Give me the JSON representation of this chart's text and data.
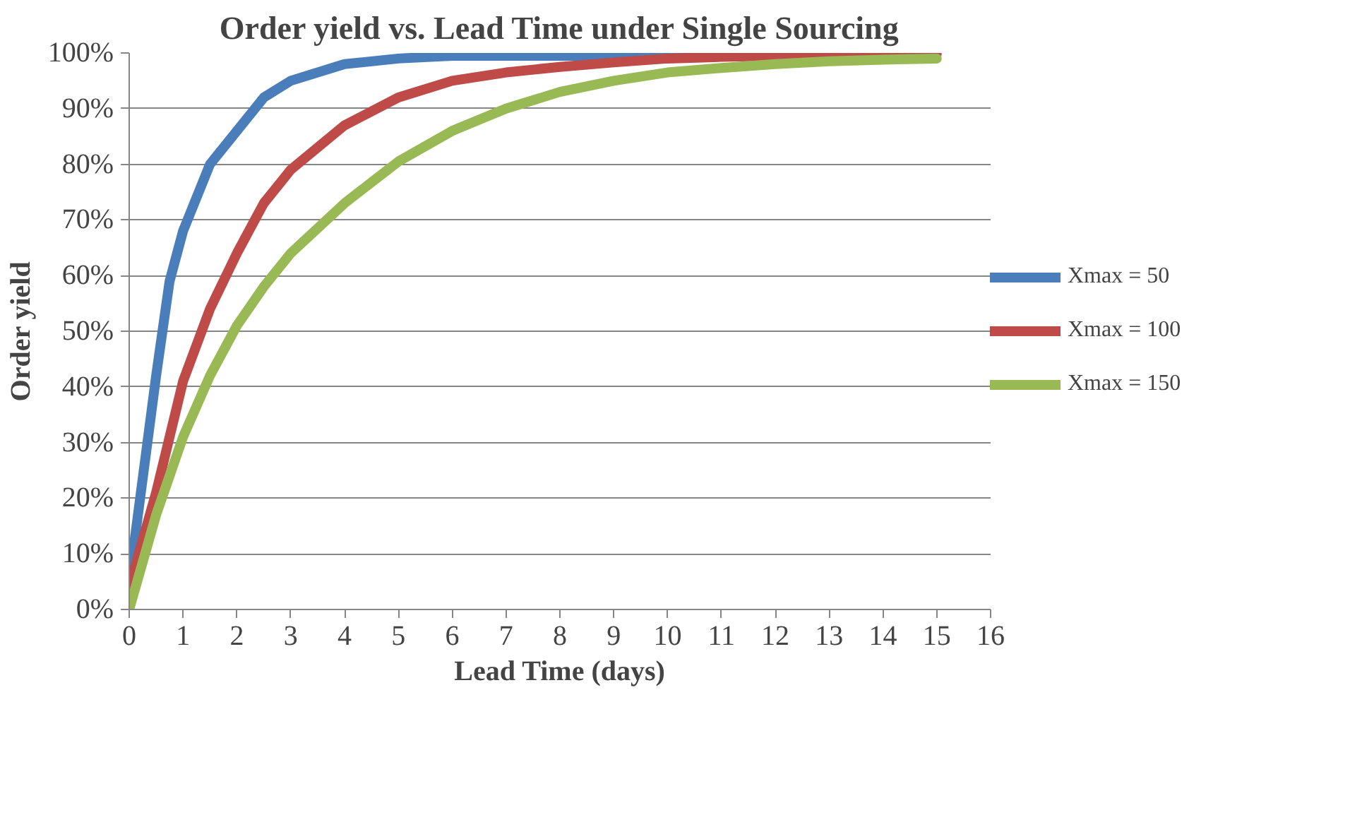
{
  "chart_data": {
    "type": "line",
    "title": "Order yield vs. Lead Time under Single Sourcing",
    "xlabel": "Lead Time (days)",
    "ylabel": "Order yield",
    "x": [
      0,
      0.5,
      0.75,
      1,
      1.5,
      2,
      2.5,
      3,
      4,
      5,
      6,
      7,
      8,
      9,
      10,
      11,
      12,
      13,
      14,
      15
    ],
    "series": [
      {
        "name": "Xmax = 50",
        "color": "#4a7ebb",
        "values": [
          5,
          42,
          59,
          68,
          80,
          86,
          92,
          95,
          98,
          99,
          99.5,
          99.5,
          99.5,
          99.5,
          99.5,
          99.5,
          null,
          null,
          null,
          null
        ]
      },
      {
        "name": "Xmax = 100",
        "color": "#be4b48",
        "values": [
          4,
          21,
          31,
          41,
          54,
          64,
          73,
          79,
          87,
          92,
          95,
          96.5,
          97.5,
          98.3,
          99,
          99.3,
          99.5,
          99.6,
          99.7,
          99.8
        ]
      },
      {
        "name": "Xmax = 150",
        "color": "#98b954",
        "values": [
          0,
          17,
          24,
          31,
          42,
          51,
          58,
          64,
          73,
          80.5,
          86,
          90,
          93,
          95,
          96.5,
          97.3,
          98,
          98.5,
          98.8,
          99
        ]
      }
    ],
    "xlim": [
      0,
      16
    ],
    "xticks": [
      0,
      1,
      2,
      3,
      4,
      5,
      6,
      7,
      8,
      9,
      10,
      11,
      12,
      13,
      14,
      15,
      16
    ],
    "ylim": [
      0,
      100
    ],
    "yticks": [
      {
        "value": 0,
        "label": "0%"
      },
      {
        "value": 10,
        "label": "10%"
      },
      {
        "value": 20,
        "label": "20%"
      },
      {
        "value": 30,
        "label": "30%"
      },
      {
        "value": 40,
        "label": "40%"
      },
      {
        "value": 50,
        "label": "50%"
      },
      {
        "value": 60,
        "label": "60%"
      },
      {
        "value": 70,
        "label": "70%"
      },
      {
        "value": 80,
        "label": "80%"
      },
      {
        "value": 90,
        "label": "90%"
      },
      {
        "value": 100,
        "label": "100%"
      }
    ],
    "grid": "y",
    "legend": "right",
    "marker": "none",
    "line_style": "solid"
  }
}
